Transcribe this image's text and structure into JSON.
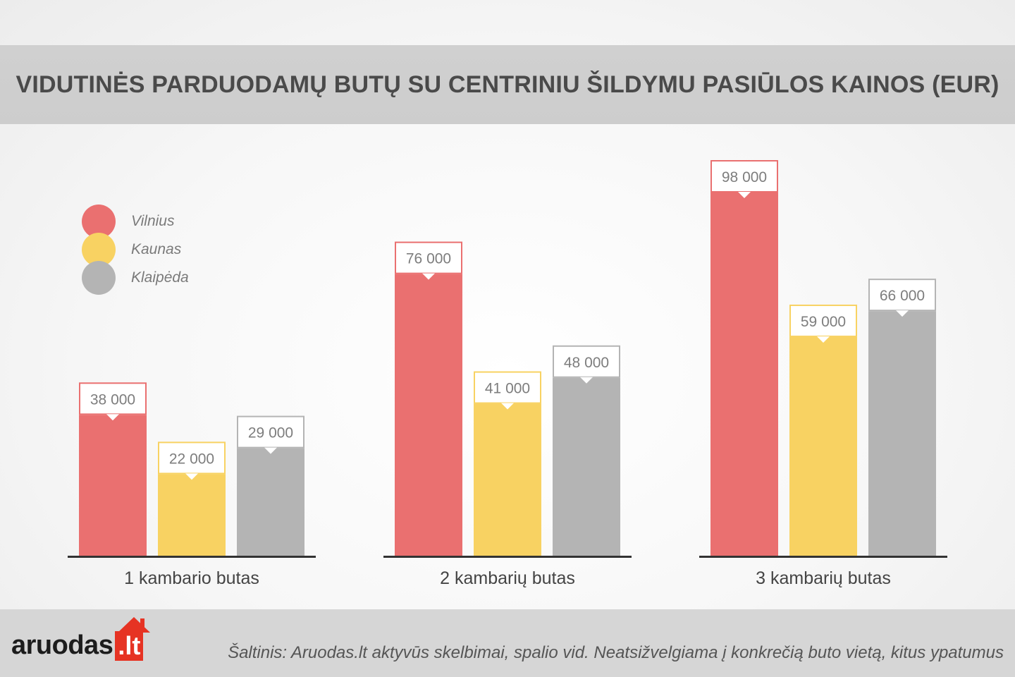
{
  "colors": {
    "vilnius": "#ea7070",
    "kaunas": "#f8d262",
    "klaipeda": "#b4b4b4",
    "baseline": "#333333",
    "axis_text": "#444444",
    "label_text": "#7d7d7d"
  },
  "header": {
    "title": "VIDUTINĖS PARDUODAMŲ BUTŲ SU CENTRINIU ŠILDYMU PASIŪLOS KAINOS (EUR)"
  },
  "legend": [
    {
      "label": "Vilnius",
      "color_key": "vilnius"
    },
    {
      "label": "Kaunas",
      "color_key": "kaunas"
    },
    {
      "label": "Klaipėda",
      "color_key": "klaipeda"
    }
  ],
  "chart_data": {
    "type": "bar",
    "title": "VIDUTINĖS PARDUODAMŲ BUTŲ SU CENTRINIU ŠILDYMU PASIŪLOS KAINOS (EUR)",
    "categories": [
      "1 kambario butas",
      "2 kambarių butas",
      "3 kambarių butas"
    ],
    "series": [
      {
        "name": "Vilnius",
        "color_key": "vilnius",
        "values": [
          38000,
          76000,
          98000
        ],
        "labels": [
          "38 000",
          "76 000",
          "98 000"
        ]
      },
      {
        "name": "Kaunas",
        "color_key": "kaunas",
        "values": [
          22000,
          41000,
          59000
        ],
        "labels": [
          "22 000",
          "41 000",
          "59 000"
        ]
      },
      {
        "name": "Klaipėda",
        "color_key": "klaipeda",
        "values": [
          29000,
          48000,
          66000
        ],
        "labels": [
          "29 000",
          "48 000",
          "66 000"
        ]
      }
    ],
    "ylim": [
      0,
      98000
    ],
    "grid": false,
    "legend_position": "top-left"
  },
  "footer": {
    "logo_text": "aruodas",
    "logo_tld": ".lt",
    "source": "Šaltinis: Aruodas.lt aktyvūs skelbimai, spalio vid. Neatsižvelgiama į konkrečią buto vietą, kitus ypatumus"
  }
}
